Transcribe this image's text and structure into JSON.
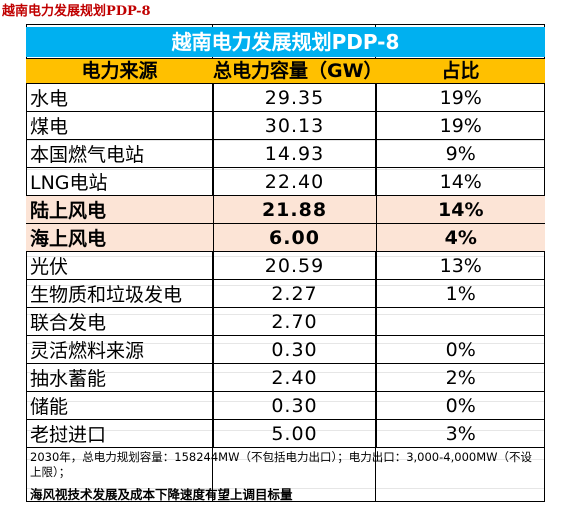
{
  "sheet_title": "越南电力发展规划PDP-8",
  "table_title": "越南电力发展规划PDP-8",
  "headers": [
    "电力来源",
    "总电力容量（GW）",
    "占比"
  ],
  "rows": [
    {
      "source": "水电",
      "capacity": "29.35",
      "share": "19%",
      "highlight": false
    },
    {
      "source": "煤电",
      "capacity": "30.13",
      "share": "19%",
      "highlight": false
    },
    {
      "source": "本国燃气电站",
      "capacity": "14.93",
      "share": "9%",
      "highlight": false
    },
    {
      "source": "LNG电站",
      "capacity": "22.40",
      "share": "14%",
      "highlight": false
    },
    {
      "source": "陆上风电",
      "capacity": "21.88",
      "share": "14%",
      "highlight": true
    },
    {
      "source": "海上风电",
      "capacity": "6.00",
      "share": "4%",
      "highlight": true
    },
    {
      "source": "光伏",
      "capacity": "20.59",
      "share": "13%",
      "highlight": false
    },
    {
      "source": "生物质和垃圾发电",
      "capacity": "2.27",
      "share": "1%",
      "highlight": false
    },
    {
      "source": "联合发电",
      "capacity": "2.70",
      "share": "",
      "highlight": false
    },
    {
      "source": "灵活燃料来源",
      "capacity": "0.30",
      "share": "0%",
      "highlight": false
    },
    {
      "source": "抽水蓄能",
      "capacity": "2.40",
      "share": "2%",
      "highlight": false
    },
    {
      "source": "储能",
      "capacity": "0.30",
      "share": "0%",
      "highlight": false
    },
    {
      "source": "老挝进口",
      "capacity": "5.00",
      "share": "3%",
      "highlight": false
    }
  ],
  "note": "2030年，总电力规划容量：158244MW（不包括电力出口）；电力出口：3,000-4,000MW（不设上限）；",
  "footer": "海风视技术发展及成本下降速度有望上调目标量",
  "colors": {
    "banner": "#00b0f0",
    "header": "#ffc000",
    "highlight": "#fce4d6",
    "sheet_title": "#c00000"
  }
}
